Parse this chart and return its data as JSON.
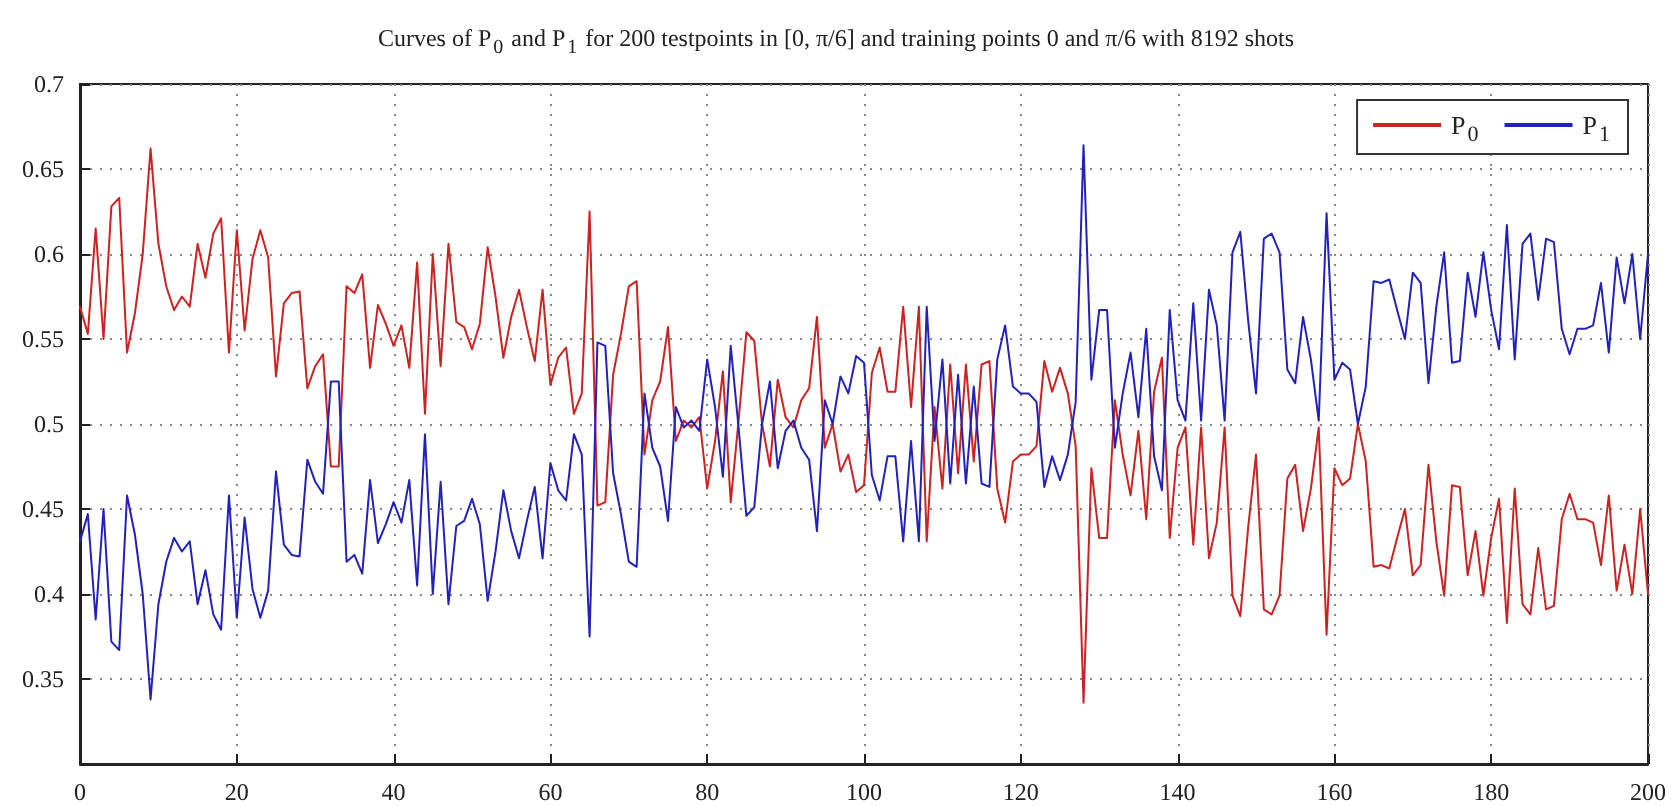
{
  "chart_data": {
    "type": "line",
    "title": "Curves of P$_{0}$ and P$_{1}$ for 200 testpoints in [0, π/6] and training points 0 and π/6 with 8192 shots",
    "x": [
      0,
      1,
      2,
      3,
      4,
      5,
      6,
      7,
      8,
      9,
      10,
      11,
      12,
      13,
      14,
      15,
      16,
      17,
      18,
      19,
      20,
      21,
      22,
      23,
      24,
      25,
      26,
      27,
      28,
      29,
      30,
      31,
      32,
      33,
      34,
      35,
      36,
      37,
      38,
      39,
      40,
      41,
      42,
      43,
      44,
      45,
      46,
      47,
      48,
      49,
      50,
      51,
      52,
      53,
      54,
      55,
      56,
      57,
      58,
      59,
      60,
      61,
      62,
      63,
      64,
      65,
      66,
      67,
      68,
      69,
      70,
      71,
      72,
      73,
      74,
      75,
      76,
      77,
      78,
      79,
      80,
      81,
      82,
      83,
      84,
      85,
      86,
      87,
      88,
      89,
      90,
      91,
      92,
      93,
      94,
      95,
      96,
      97,
      98,
      99,
      100,
      101,
      102,
      103,
      104,
      105,
      106,
      107,
      108,
      109,
      110,
      111,
      112,
      113,
      114,
      115,
      116,
      117,
      118,
      119,
      120,
      121,
      122,
      123,
      124,
      125,
      126,
      127,
      128,
      129,
      130,
      131,
      132,
      133,
      134,
      135,
      136,
      137,
      138,
      139,
      140,
      141,
      142,
      143,
      144,
      145,
      146,
      147,
      148,
      149,
      150,
      151,
      152,
      153,
      154,
      155,
      156,
      157,
      158,
      159,
      160,
      161,
      162,
      163,
      164,
      165,
      166,
      167,
      168,
      169,
      170,
      171,
      172,
      173,
      174,
      175,
      176,
      177,
      178,
      179,
      180,
      181,
      182,
      183,
      184,
      185,
      186,
      187,
      188,
      189,
      190,
      191,
      192,
      193,
      194,
      195,
      196,
      197,
      198,
      199,
      200
    ],
    "series": [
      {
        "name": "P$_{0}$",
        "color": "#cc2222",
        "values": [
          0.569,
          0.553,
          0.615,
          0.55,
          0.628,
          0.633,
          0.542,
          0.565,
          0.6,
          0.662,
          0.606,
          0.581,
          0.567,
          0.575,
          0.569,
          0.606,
          0.586,
          0.612,
          0.621,
          0.542,
          0.614,
          0.555,
          0.597,
          0.614,
          0.598,
          0.528,
          0.571,
          0.577,
          0.578,
          0.521,
          0.534,
          0.541,
          0.475,
          0.475,
          0.581,
          0.577,
          0.588,
          0.533,
          0.57,
          0.559,
          0.546,
          0.558,
          0.533,
          0.595,
          0.506,
          0.6,
          0.534,
          0.606,
          0.56,
          0.557,
          0.544,
          0.559,
          0.604,
          0.575,
          0.539,
          0.563,
          0.579,
          0.557,
          0.537,
          0.579,
          0.523,
          0.539,
          0.545,
          0.506,
          0.518,
          0.625,
          0.452,
          0.454,
          0.529,
          0.553,
          0.581,
          0.584,
          0.482,
          0.514,
          0.525,
          0.557,
          0.49,
          0.502,
          0.498,
          0.504,
          0.462,
          0.49,
          0.531,
          0.454,
          0.502,
          0.554,
          0.549,
          0.5,
          0.475,
          0.526,
          0.504,
          0.498,
          0.514,
          0.521,
          0.563,
          0.486,
          0.5,
          0.472,
          0.482,
          0.46,
          0.464,
          0.53,
          0.545,
          0.519,
          0.519,
          0.569,
          0.51,
          0.569,
          0.431,
          0.51,
          0.462,
          0.535,
          0.471,
          0.535,
          0.478,
          0.535,
          0.537,
          0.462,
          0.442,
          0.478,
          0.482,
          0.482,
          0.487,
          0.537,
          0.519,
          0.533,
          0.518,
          0.487,
          0.336,
          0.474,
          0.433,
          0.433,
          0.514,
          0.482,
          0.458,
          0.496,
          0.444,
          0.519,
          0.539,
          0.433,
          0.486,
          0.498,
          0.429,
          0.498,
          0.421,
          0.442,
          0.498,
          0.399,
          0.387,
          0.439,
          0.482,
          0.391,
          0.388,
          0.399,
          0.468,
          0.476,
          0.437,
          0.462,
          0.498,
          0.376,
          0.474,
          0.464,
          0.468,
          0.5,
          0.478,
          0.416,
          0.417,
          0.415,
          0.433,
          0.45,
          0.411,
          0.417,
          0.476,
          0.431,
          0.399,
          0.464,
          0.463,
          0.411,
          0.437,
          0.399,
          0.433,
          0.456,
          0.383,
          0.462,
          0.394,
          0.388,
          0.427,
          0.391,
          0.393,
          0.444,
          0.459,
          0.444,
          0.444,
          0.442,
          0.417,
          0.458,
          0.402,
          0.429,
          0.4,
          0.45,
          0.4
        ]
      },
      {
        "name": "P$_{1}$",
        "color": "#2222bb",
        "values": [
          0.431,
          0.447,
          0.385,
          0.45,
          0.372,
          0.367,
          0.458,
          0.435,
          0.4,
          0.338,
          0.394,
          0.419,
          0.433,
          0.425,
          0.431,
          0.394,
          0.414,
          0.388,
          0.379,
          0.458,
          0.386,
          0.445,
          0.403,
          0.386,
          0.402,
          0.472,
          0.429,
          0.423,
          0.422,
          0.479,
          0.466,
          0.459,
          0.525,
          0.525,
          0.419,
          0.423,
          0.412,
          0.467,
          0.43,
          0.441,
          0.454,
          0.442,
          0.467,
          0.405,
          0.494,
          0.4,
          0.466,
          0.394,
          0.44,
          0.443,
          0.456,
          0.441,
          0.396,
          0.425,
          0.461,
          0.437,
          0.421,
          0.443,
          0.463,
          0.421,
          0.477,
          0.461,
          0.455,
          0.494,
          0.482,
          0.375,
          0.548,
          0.546,
          0.471,
          0.447,
          0.419,
          0.416,
          0.518,
          0.486,
          0.475,
          0.443,
          0.51,
          0.498,
          0.502,
          0.496,
          0.538,
          0.51,
          0.469,
          0.546,
          0.498,
          0.446,
          0.451,
          0.5,
          0.525,
          0.474,
          0.496,
          0.502,
          0.486,
          0.479,
          0.437,
          0.514,
          0.5,
          0.528,
          0.518,
          0.54,
          0.536,
          0.47,
          0.455,
          0.481,
          0.481,
          0.431,
          0.49,
          0.431,
          0.569,
          0.49,
          0.538,
          0.465,
          0.529,
          0.465,
          0.522,
          0.465,
          0.463,
          0.538,
          0.558,
          0.522,
          0.518,
          0.518,
          0.513,
          0.463,
          0.481,
          0.467,
          0.482,
          0.513,
          0.664,
          0.526,
          0.567,
          0.567,
          0.486,
          0.518,
          0.542,
          0.504,
          0.556,
          0.481,
          0.461,
          0.567,
          0.514,
          0.502,
          0.571,
          0.502,
          0.579,
          0.558,
          0.502,
          0.601,
          0.613,
          0.561,
          0.518,
          0.609,
          0.612,
          0.601,
          0.532,
          0.524,
          0.563,
          0.538,
          0.502,
          0.624,
          0.526,
          0.536,
          0.532,
          0.5,
          0.522,
          0.584,
          0.583,
          0.585,
          0.567,
          0.55,
          0.589,
          0.583,
          0.524,
          0.569,
          0.601,
          0.536,
          0.537,
          0.589,
          0.563,
          0.601,
          0.567,
          0.544,
          0.617,
          0.538,
          0.606,
          0.612,
          0.573,
          0.609,
          0.607,
          0.556,
          0.541,
          0.556,
          0.556,
          0.558,
          0.583,
          0.542,
          0.598,
          0.571,
          0.6,
          0.55,
          0.6
        ]
      }
    ],
    "xlim": [
      0,
      200
    ],
    "xticks": [
      0,
      20,
      40,
      60,
      80,
      100,
      120,
      140,
      160,
      180,
      200
    ],
    "ylim": [
      0.3,
      0.7
    ],
    "yticks": [
      0.35,
      0.4,
      0.45,
      0.5,
      0.55,
      0.6,
      0.65,
      0.7
    ],
    "grid": true,
    "legend": "top right",
    "marker": "none",
    "line_style": "solid"
  }
}
